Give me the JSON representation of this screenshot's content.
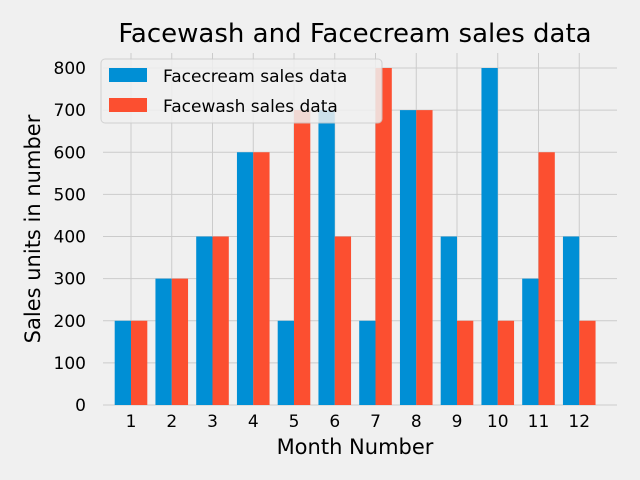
{
  "chart_data": {
    "type": "bar",
    "title": "Facewash and Facecream sales data",
    "xlabel": "Month Number",
    "ylabel": "Sales units in number",
    "categories": [
      "1",
      "2",
      "3",
      "4",
      "5",
      "6",
      "7",
      "8",
      "9",
      "10",
      "11",
      "12"
    ],
    "series": [
      {
        "name": "Facecream sales data",
        "color": "#008fd5",
        "values": [
          200,
          300,
          400,
          600,
          200,
          700,
          200,
          700,
          400,
          800,
          300,
          400
        ]
      },
      {
        "name": "Facewash sales data",
        "color": "#fc4f30",
        "values": [
          200,
          300,
          400,
          600,
          700,
          400,
          800,
          700,
          200,
          200,
          600,
          200
        ]
      }
    ],
    "ylim": [
      0,
      800
    ],
    "yticks": [
      0,
      100,
      200,
      300,
      400,
      500,
      600,
      700,
      800
    ],
    "grid": true,
    "legend_position": "top-left"
  }
}
